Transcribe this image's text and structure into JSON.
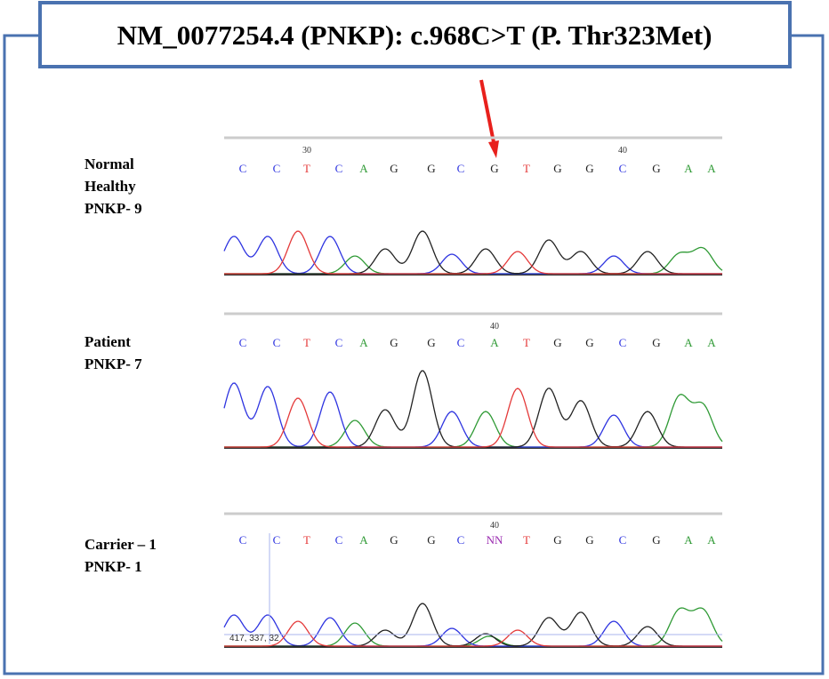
{
  "title": "NM_0077254.4 (PNKP): c.968C>T (P. Thr323Met)",
  "panels": [
    {
      "labels": [
        "Normal",
        "Healthy",
        "PNKP- 9"
      ],
      "bases": [
        "C",
        "C",
        "T",
        "C",
        "A",
        "G",
        "G",
        "C",
        "G",
        "T",
        "G",
        "G",
        "C",
        "G",
        "A",
        "A"
      ],
      "position_marks": [
        "30",
        "40"
      ]
    },
    {
      "labels": [
        "Patient",
        "PNKP- 7"
      ],
      "bases": [
        "C",
        "C",
        "T",
        "C",
        "A",
        "G",
        "G",
        "C",
        "A",
        "T",
        "G",
        "G",
        "C",
        "G",
        "A",
        "A"
      ],
      "position_marks": [
        "40"
      ]
    },
    {
      "labels": [
        "Carrier – 1",
        "PNKP- 1"
      ],
      "bases": [
        "C",
        "C",
        "T",
        "C",
        "A",
        "G",
        "G",
        "C",
        "NN",
        "T",
        "G",
        "G",
        "C",
        "G",
        "A",
        "A"
      ],
      "position_marks": [
        "40"
      ],
      "annotation": "417, 337, 32"
    }
  ]
}
